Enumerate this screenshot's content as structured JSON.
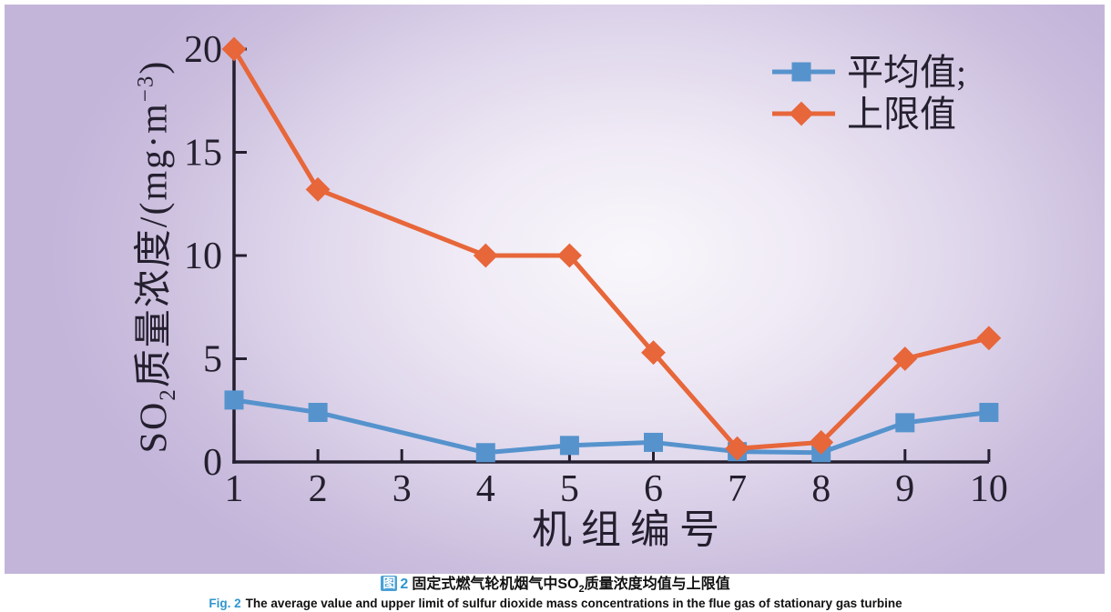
{
  "panel": {
    "bg_center": "#f9f7fb",
    "bg_edge": "#c3b5da"
  },
  "chart_data": {
    "type": "line",
    "x": [
      1,
      2,
      3,
      4,
      5,
      6,
      7,
      8,
      9,
      10
    ],
    "xlabel": "机组编号",
    "ylabel": "SO2质量浓度/(mg·m−3)",
    "ylabel_parts": {
      "pre": "SO",
      "sub": "2",
      "mid": "质量浓度/(mg·m",
      "sup": "−3",
      "post": ")"
    },
    "ylim": [
      0,
      20
    ],
    "yticks": [
      0,
      5,
      10,
      15,
      20
    ],
    "grid": false,
    "legend_position": "top-right",
    "axis_color": "#241f2e",
    "series": [
      {
        "key": "average",
        "name": "平均值",
        "legend_label": "平均值;",
        "marker": "square",
        "color": "#5693cd",
        "values": [
          3.0,
          2.4,
          null,
          0.45,
          0.8,
          0.95,
          0.5,
          0.45,
          1.9,
          2.4
        ]
      },
      {
        "key": "upper",
        "name": "上限值",
        "legend_label": "上限值",
        "marker": "diamond",
        "color": "#e7663a",
        "values": [
          20.0,
          13.2,
          null,
          10.0,
          10.0,
          5.3,
          0.65,
          0.95,
          5.0,
          6.0
        ]
      }
    ]
  },
  "captions": {
    "accent_color": "#2e96ce",
    "zh": {
      "tag_box": "图",
      "tag_num": "2",
      "text_pre": "固定式燃气轮机烟气中SO",
      "text_sub": "2",
      "text_post": "质量浓度均值与上限值"
    },
    "en": {
      "tag": "Fig. 2",
      "text": "The average value and upper limit of sulfur dioxide mass concentrations in the flue gas of stationary gas turbine"
    }
  }
}
